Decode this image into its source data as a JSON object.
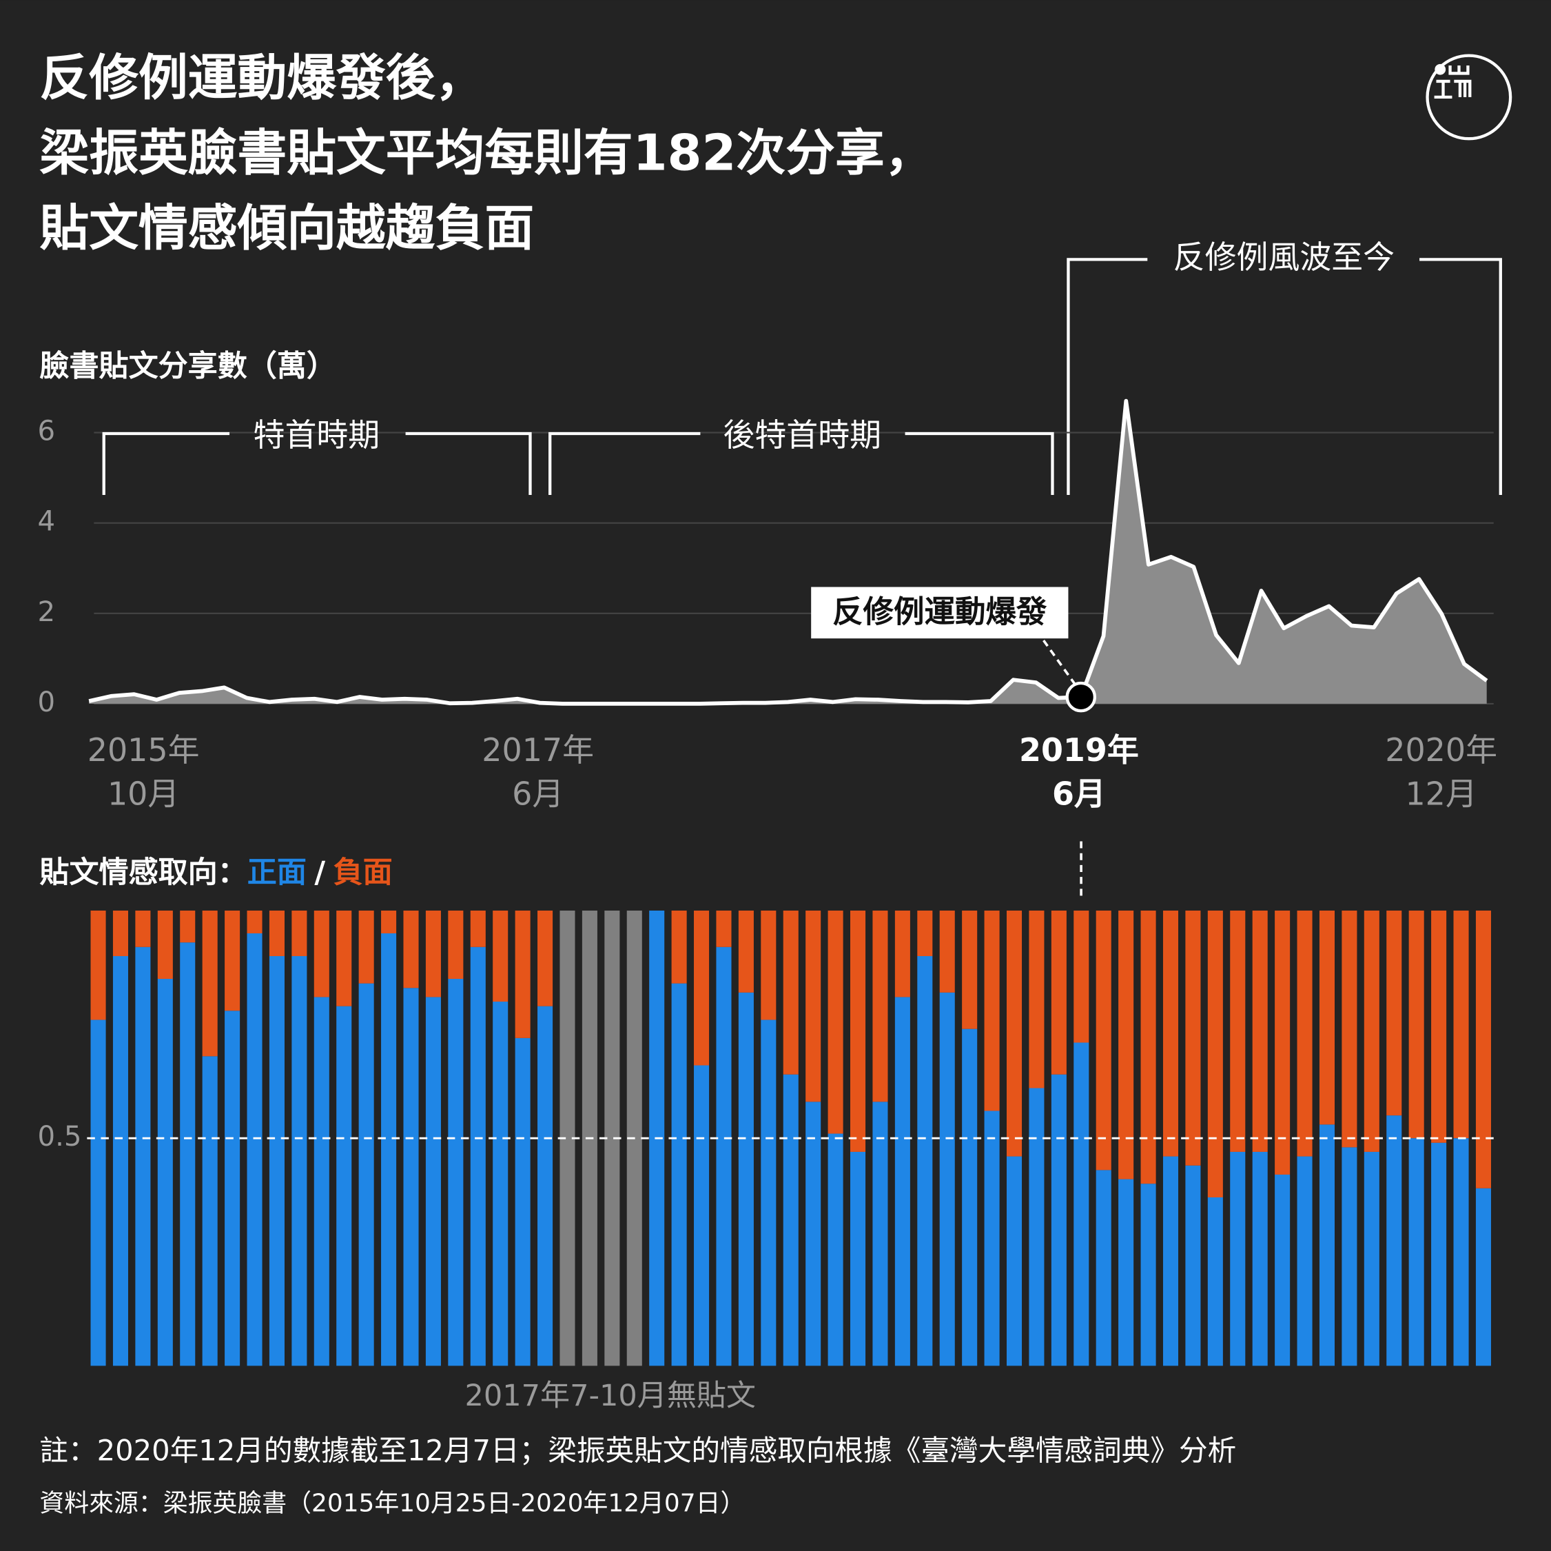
{
  "title": [
    "反修例運動爆發後，",
    "梁振英臉書貼文平均每則有182次分享，",
    "貼文情感傾向越趨負面"
  ],
  "notes": [
    "註：2020年12月的數據截至12月7日；梁振英貼文的情感取向根據《臺灣大學情感詞典》分析",
    "資料來源：梁振英臉書（2015年10月25日-2020年12月07日）"
  ],
  "chart_data": [
    {
      "type": "area",
      "ylabel": "臉書貼文分享數（萬）",
      "color": "#8c8c8c",
      "line_color": "#ffffff",
      "grid": true,
      "ylim": [
        0,
        6
      ],
      "yticks": [
        0,
        2,
        4,
        6
      ],
      "highlight_index": 44,
      "categories": [
        "2015年10月",
        null,
        null,
        null,
        null,
        null,
        null,
        null,
        null,
        null,
        null,
        null,
        null,
        null,
        null,
        null,
        null,
        null,
        null,
        null,
        "2017年6月",
        null,
        null,
        null,
        null,
        null,
        null,
        null,
        null,
        null,
        null,
        null,
        null,
        null,
        null,
        null,
        null,
        null,
        null,
        null,
        null,
        null,
        null,
        null,
        "2019年6月",
        null,
        null,
        null,
        null,
        null,
        null,
        null,
        null,
        null,
        null,
        null,
        null,
        null,
        null,
        null,
        null,
        null,
        "2020年12月"
      ],
      "values": [
        0.06,
        0.17,
        0.21,
        0.09,
        0.24,
        0.28,
        0.36,
        0.13,
        0.04,
        0.09,
        0.11,
        0.04,
        0.15,
        0.09,
        0.11,
        0.09,
        0.01,
        0.02,
        0.06,
        0.11,
        0.02,
        0,
        0,
        0,
        0,
        0,
        0,
        0,
        0.01,
        0.02,
        0.02,
        0.04,
        0.09,
        0.04,
        0.1,
        0.09,
        0.06,
        0.04,
        0.04,
        0.03,
        0.06,
        0.53,
        0.47,
        0.13,
        0.15,
        1.5,
        6.7,
        3.08,
        3.25,
        3.03,
        1.52,
        0.9,
        2.5,
        1.67,
        1.94,
        2.16,
        1.73,
        1.69,
        2.44,
        2.76,
        1.99,
        0.88,
        0.51
      ],
      "annotations": [
        "特首時期",
        "後特首時期",
        "反修例風波至今",
        "反修例運動爆發"
      ]
    },
    {
      "type": "stacked_bar",
      "title": "貼文情感取向：",
      "legend_separator": "/",
      "ylim": [
        0,
        1
      ],
      "yticks": [
        0.5
      ],
      "no_data_color": "#808080",
      "series": [
        {
          "name": "正面",
          "color": "#1f86e6",
          "values": [
            0.76,
            0.9,
            0.92,
            0.85,
            0.93,
            0.68,
            0.78,
            0.95,
            0.9,
            0.9,
            0.81,
            0.79,
            0.84,
            0.95,
            0.83,
            0.81,
            0.85,
            0.92,
            0.8,
            0.72,
            0.79,
            null,
            null,
            null,
            null,
            1,
            0.84,
            0.66,
            0.92,
            0.82,
            0.76,
            0.64,
            0.58,
            0.51,
            0.47,
            0.58,
            0.81,
            0.9,
            0.82,
            0.74,
            0.56,
            0.46,
            0.61,
            0.64,
            0.71,
            0.43,
            0.41,
            0.4,
            0.46,
            0.44,
            0.37,
            0.47,
            0.47,
            0.42,
            0.46,
            0.53,
            0.48,
            0.47,
            0.55,
            0.5,
            0.49,
            0.5,
            0.39
          ]
        },
        {
          "name": "負面",
          "color": "#e6551a",
          "values": [
            0.24,
            0.1,
            0.08,
            0.15,
            0.07,
            0.32,
            0.22,
            0.05,
            0.1,
            0.1,
            0.19,
            0.21,
            0.16,
            0.05,
            0.17,
            0.19,
            0.15,
            0.08,
            0.2,
            0.28,
            0.21,
            null,
            null,
            null,
            null,
            0,
            0.16,
            0.34,
            0.08,
            0.18,
            0.24,
            0.36,
            0.42,
            0.49,
            0.53,
            0.42,
            0.19,
            0.1,
            0.18,
            0.26,
            0.44,
            0.54,
            0.39,
            0.36,
            0.29,
            0.57,
            0.59,
            0.6,
            0.54,
            0.56,
            0.63,
            0.53,
            0.53,
            0.58,
            0.54,
            0.47,
            0.52,
            0.53,
            0.45,
            0.5,
            0.51,
            0.5,
            0.61
          ]
        }
      ],
      "annotation": "2017年7-10月無貼文"
    }
  ]
}
